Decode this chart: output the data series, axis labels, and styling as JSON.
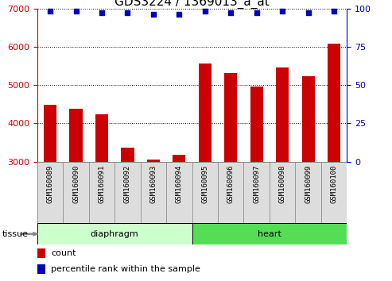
{
  "title": "GDS3224 / 1369013_a_at",
  "samples": [
    "GSM160089",
    "GSM160090",
    "GSM160091",
    "GSM160092",
    "GSM160093",
    "GSM160094",
    "GSM160095",
    "GSM160096",
    "GSM160097",
    "GSM160098",
    "GSM160099",
    "GSM160100"
  ],
  "counts": [
    4480,
    4390,
    4230,
    3360,
    3060,
    3170,
    5570,
    5320,
    4950,
    5460,
    5230,
    6080
  ],
  "percentiles": [
    98,
    98,
    97,
    97,
    96,
    96,
    98,
    97,
    97,
    98,
    97,
    98
  ],
  "tissue_groups": [
    {
      "label": "diaphragm",
      "start": 0,
      "end": 5,
      "color_light": "#CCFFCC",
      "color_dark": "#66DD66"
    },
    {
      "label": "heart",
      "start": 6,
      "end": 11,
      "color_light": "#66DD66",
      "color_dark": "#44CC44"
    }
  ],
  "bar_color": "#CC0000",
  "dot_color": "#0000BB",
  "ylim_left": [
    3000,
    7000
  ],
  "ylim_right": [
    0,
    100
  ],
  "yticks_left": [
    3000,
    4000,
    5000,
    6000,
    7000
  ],
  "yticks_right": [
    0,
    25,
    50,
    75,
    100
  ],
  "label_color_left": "#CC0000",
  "label_color_right": "#0000BB",
  "tissue_label": "tissue",
  "legend_count": "count",
  "legend_percentile": "percentile rank within the sample",
  "title_fontsize": 11,
  "tick_fontsize": 8,
  "sample_fontsize": 6.5,
  "cell_bg": "#DDDDDD",
  "cell_border": "#888888",
  "plot_bg": "#FFFFFF"
}
